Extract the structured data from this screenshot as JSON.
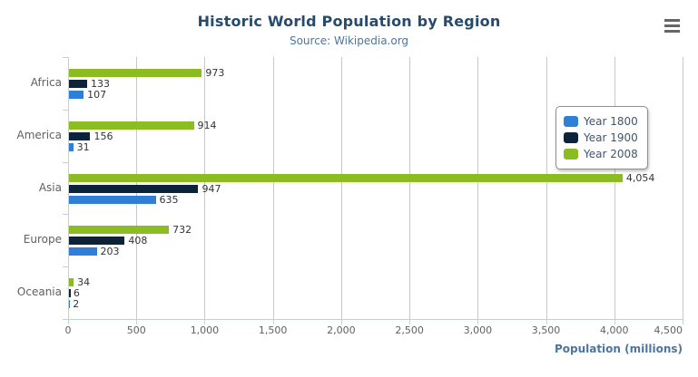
{
  "title": "Historic World Population by Region",
  "subtitle": "Source: Wikipedia.org",
  "export_menu": {
    "icon": "hamburger-menu-icon",
    "color": "#666666"
  },
  "colors": {
    "title": "#274b6d",
    "subtitle": "#4d759e",
    "axis_line": "#c0d0e0",
    "gridline": "#c8c8c8",
    "tick_label": "#606060",
    "data_label": "#333333"
  },
  "chart_data": {
    "type": "bar",
    "orientation": "horizontal",
    "title": "Historic World Population by Region",
    "subtitle": "Source: Wikipedia.org",
    "categories": [
      "Africa",
      "America",
      "Asia",
      "Europe",
      "Oceania"
    ],
    "series": [
      {
        "name": "Year 1800",
        "color": "#2f7ed8",
        "values": [
          107,
          31,
          635,
          203,
          2
        ]
      },
      {
        "name": "Year 1900",
        "color": "#0d233a",
        "values": [
          133,
          156,
          947,
          408,
          6
        ]
      },
      {
        "name": "Year 2008",
        "color": "#8bbc21",
        "values": [
          973,
          914,
          4054,
          732,
          34
        ]
      }
    ],
    "bar_order_top_to_bottom": [
      "Year 2008",
      "Year 1900",
      "Year 1800"
    ],
    "data_labels": true,
    "xlabel": "Population (millions)",
    "xlim": [
      0,
      4500
    ],
    "xticks": [
      0,
      500,
      1000,
      1500,
      2000,
      2500,
      3000,
      3500,
      4000,
      4500
    ],
    "xtick_labels": [
      "0",
      "500",
      "1,000",
      "1,500",
      "2,000",
      "2,500",
      "3,000",
      "3,500",
      "4,000",
      "4,500"
    ],
    "grid": true,
    "legend_position": "floating-top-right"
  }
}
